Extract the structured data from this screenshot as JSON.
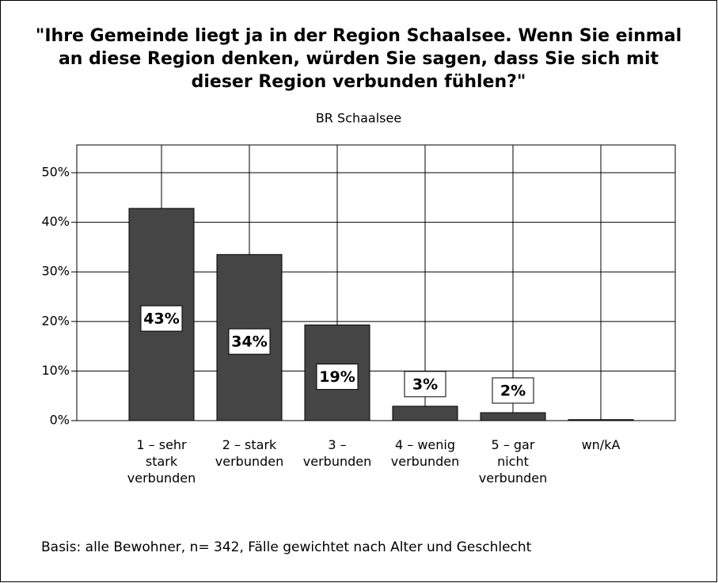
{
  "chart_data": {
    "type": "bar",
    "title": [
      "\"Ihre Gemeinde liegt ja in der Region Schaalsee. Wenn Sie einmal",
      "an diese Region denken, würden Sie sagen, dass Sie sich mit",
      "dieser Region verbunden fühlen?\""
    ],
    "subtitle": "BR Schaalsee",
    "footnote": "Basis: alle Bewohner, n= 342, Fälle gewichtet nach Alter und Geschlecht",
    "categories": [
      "1 – sehr\nstark\nverbunden",
      "2 – stark\nverbunden",
      "3 –\nverbunden",
      "4 – wenig\nverbunden",
      "5 – gar\nnicht\nverbunden",
      "wn/kA"
    ],
    "values": [
      42.8,
      33.5,
      19.3,
      2.9,
      1.6,
      0.2
    ],
    "value_labels": [
      "43%",
      "34%",
      "19%",
      "3%",
      "2%",
      null
    ],
    "color": "#454545",
    "ylim": [
      0,
      55.6
    ],
    "yticks": [
      {
        "value": 0,
        "label": "0%"
      },
      {
        "value": 10,
        "label": "10%"
      },
      {
        "value": 20,
        "label": "20%"
      },
      {
        "value": 30,
        "label": "30%"
      },
      {
        "value": 40,
        "label": "40%"
      },
      {
        "value": 50,
        "label": "50%"
      }
    ],
    "grid": true
  }
}
